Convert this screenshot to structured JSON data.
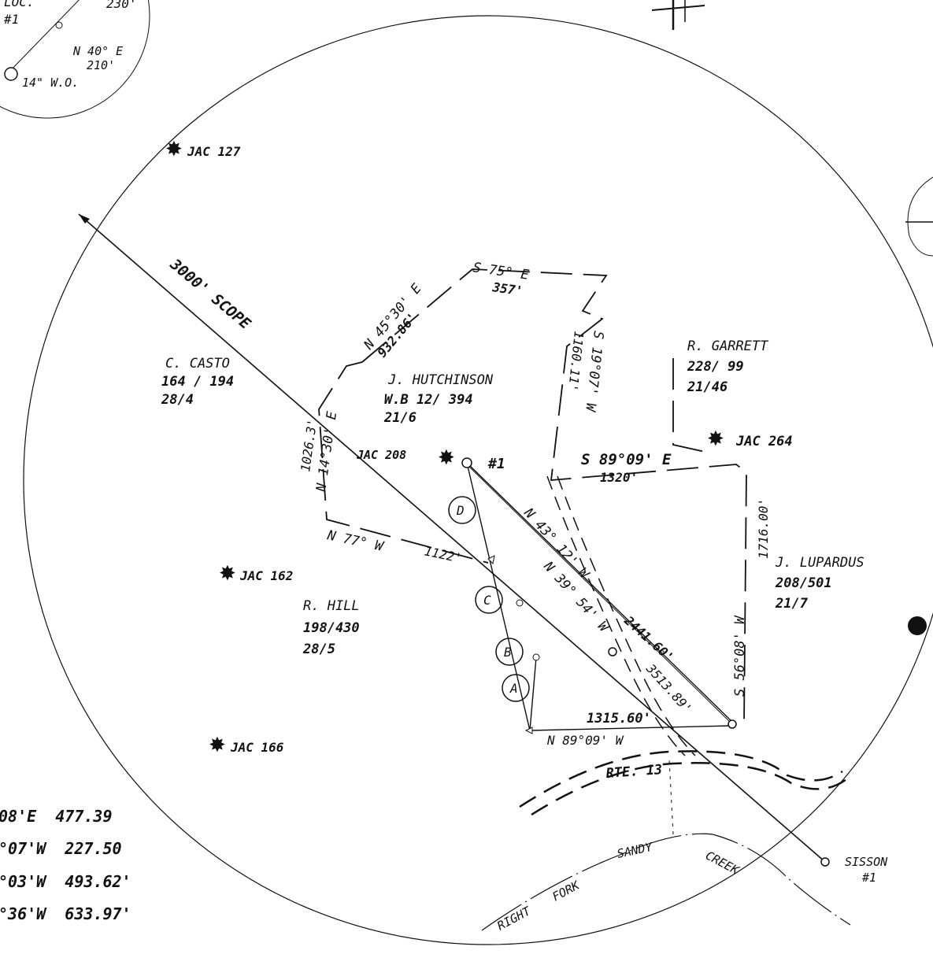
{
  "inset": {
    "loc": "LOC.",
    "loc_num": "#1",
    "dist_top": "230'",
    "bearing": "N 40° E",
    "dist": "210'",
    "well_size": "14\" W.O."
  },
  "scope_line": "3000' SCOPE",
  "wells": [
    "JAC 127",
    "JAC 208",
    "JAC 264",
    "JAC 162",
    "JAC 166"
  ],
  "location_marker": "#1",
  "owners": [
    {
      "name": "C. CASTO",
      "ref1": "164 / 194",
      "ref2": "28/4"
    },
    {
      "name": "J. HUTCHINSON",
      "ref1": "W.B 12/ 394",
      "ref2": "21/6"
    },
    {
      "name": "R. GARRETT",
      "ref1": "228/ 99",
      "ref2": "21/46"
    },
    {
      "name": "J. LUPARDUS",
      "ref1": "208/501",
      "ref2": "21/7"
    },
    {
      "name": "R. HILL",
      "ref1": "198/430",
      "ref2": "28/5"
    }
  ],
  "bearings": {
    "b1": "N 45°30' E",
    "d1": "932.86'",
    "b2": "S 75° E",
    "d2": "357'",
    "b3": "S 19°07' W",
    "d3": "1160.11'",
    "b4": "N 14°30' E",
    "d4": "1026.3'",
    "b5": "S 89°09' E",
    "d5": "1320'",
    "b6": "S 56°08' W",
    "d6": "1716.00'",
    "b7": "N 77° W",
    "d7": "1122'",
    "b8": "N 43° 12' W",
    "d8": "2441.60'",
    "b9": "N 39° 54' W",
    "d9": "3513.89'",
    "b10": "N 89°09' W",
    "d10": "1315.60'"
  },
  "segments": [
    "D",
    "C",
    "B",
    "A"
  ],
  "road": "RTE. 13",
  "creek": {
    "right": "RIGHT",
    "fork": "FORK",
    "sandy": "SANDY",
    "creek": "CREEK"
  },
  "sisson": {
    "name": "SISSON",
    "num": "#1"
  },
  "table": [
    "08'E  477.39",
    "°07'W  227.50",
    "°03'W  493.62'",
    "°36'W  633.97'"
  ]
}
